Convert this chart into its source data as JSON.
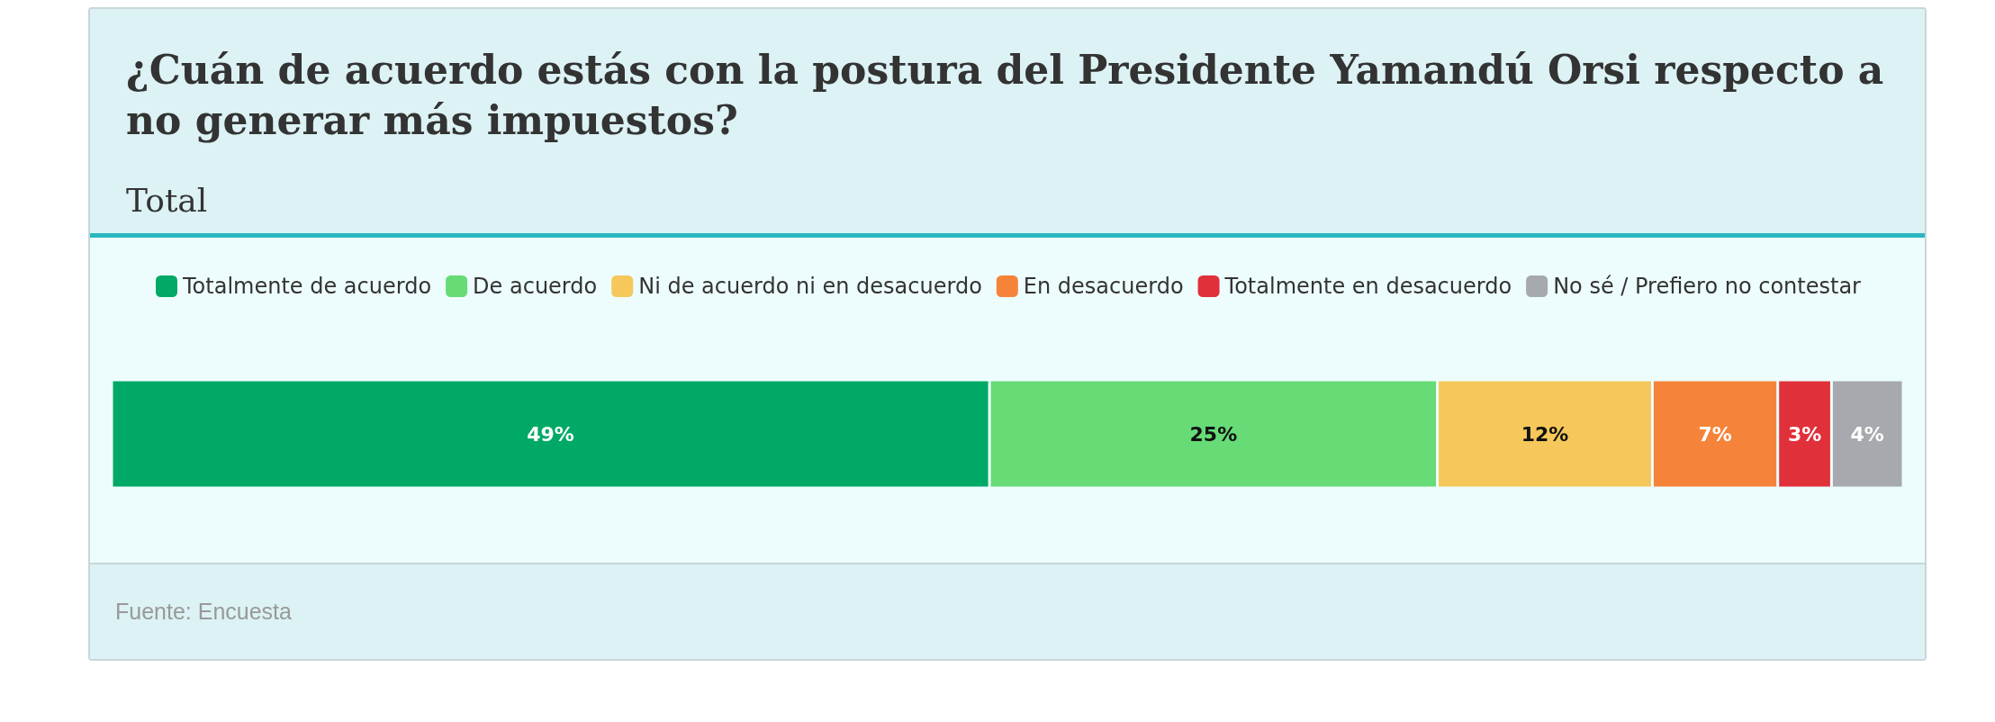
{
  "chart_data": {
    "type": "bar",
    "title": "¿Cuán de acuerdo estás con la postura del Presidente Yamandú Orsi respecto a no generar más impuestos?",
    "subtitle": "Total",
    "annotations": [
      "Fuente: Encuesta"
    ],
    "orientation": "horizontal",
    "stacked": true,
    "legend": "top",
    "grid": false,
    "categories": [
      null
    ],
    "series": [
      {
        "name": "Totalmente de acuerdo",
        "color": "#00a966",
        "values": [
          49
        ],
        "value_labels": [
          "49%"
        ]
      },
      {
        "name": "De acuerdo",
        "color": "#66db76",
        "values": [
          25
        ],
        "value_labels": [
          "25%"
        ]
      },
      {
        "name": "Ni de acuerdo ni en desacuerdo",
        "color": "#f6c75a",
        "values": [
          12
        ],
        "value_labels": [
          "12%"
        ]
      },
      {
        "name": "En desacuerdo",
        "color": "#f5843a",
        "values": [
          7
        ],
        "value_labels": [
          "7%"
        ]
      },
      {
        "name": "Totalmente en desacuerdo",
        "color": "#e0303a",
        "values": [
          3
        ],
        "value_labels": [
          "3%"
        ]
      },
      {
        "name": "No sé / Prefiero no contestar",
        "color": "#a6a9ad",
        "values": [
          4
        ],
        "value_labels": [
          "4%"
        ]
      }
    ]
  }
}
